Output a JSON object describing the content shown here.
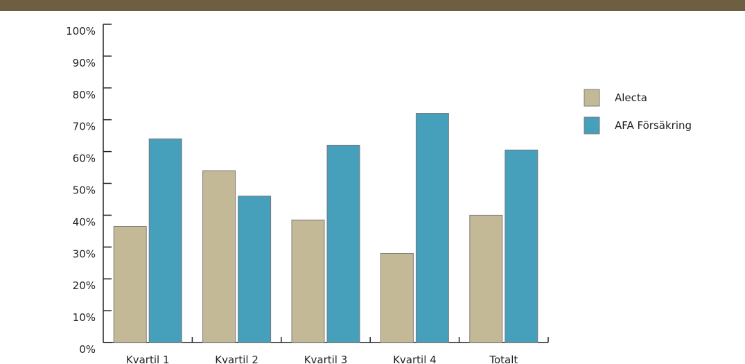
{
  "chart_data": {
    "type": "bar",
    "categories": [
      "Kvartil 1",
      "Kvartil 2",
      "Kvartil 3",
      "Kvartil 4",
      "Totalt"
    ],
    "series": [
      {
        "name": "Alecta",
        "values": [
          36.5,
          54,
          38.5,
          28,
          40
        ],
        "color": "#c4b996"
      },
      {
        "name": "AFA Försäkring",
        "values": [
          64,
          46,
          62,
          72,
          60.5
        ],
        "color": "#469fbb"
      }
    ],
    "ylim": [
      0,
      100
    ],
    "yticks": [
      0,
      10,
      20,
      30,
      40,
      50,
      60,
      70,
      80,
      90,
      100
    ],
    "ytick_labels": [
      "0%",
      "10%",
      "20%",
      "30%",
      "40%",
      "50%",
      "60%",
      "70%",
      "80%",
      "90%",
      "100%"
    ],
    "title": "",
    "xlabel": "",
    "ylabel": "",
    "grid": false,
    "legend_position": "right"
  },
  "colors": {
    "header_bar": "#6e5f43",
    "bar_border": "#7a7a7a",
    "axis": "#222222"
  }
}
